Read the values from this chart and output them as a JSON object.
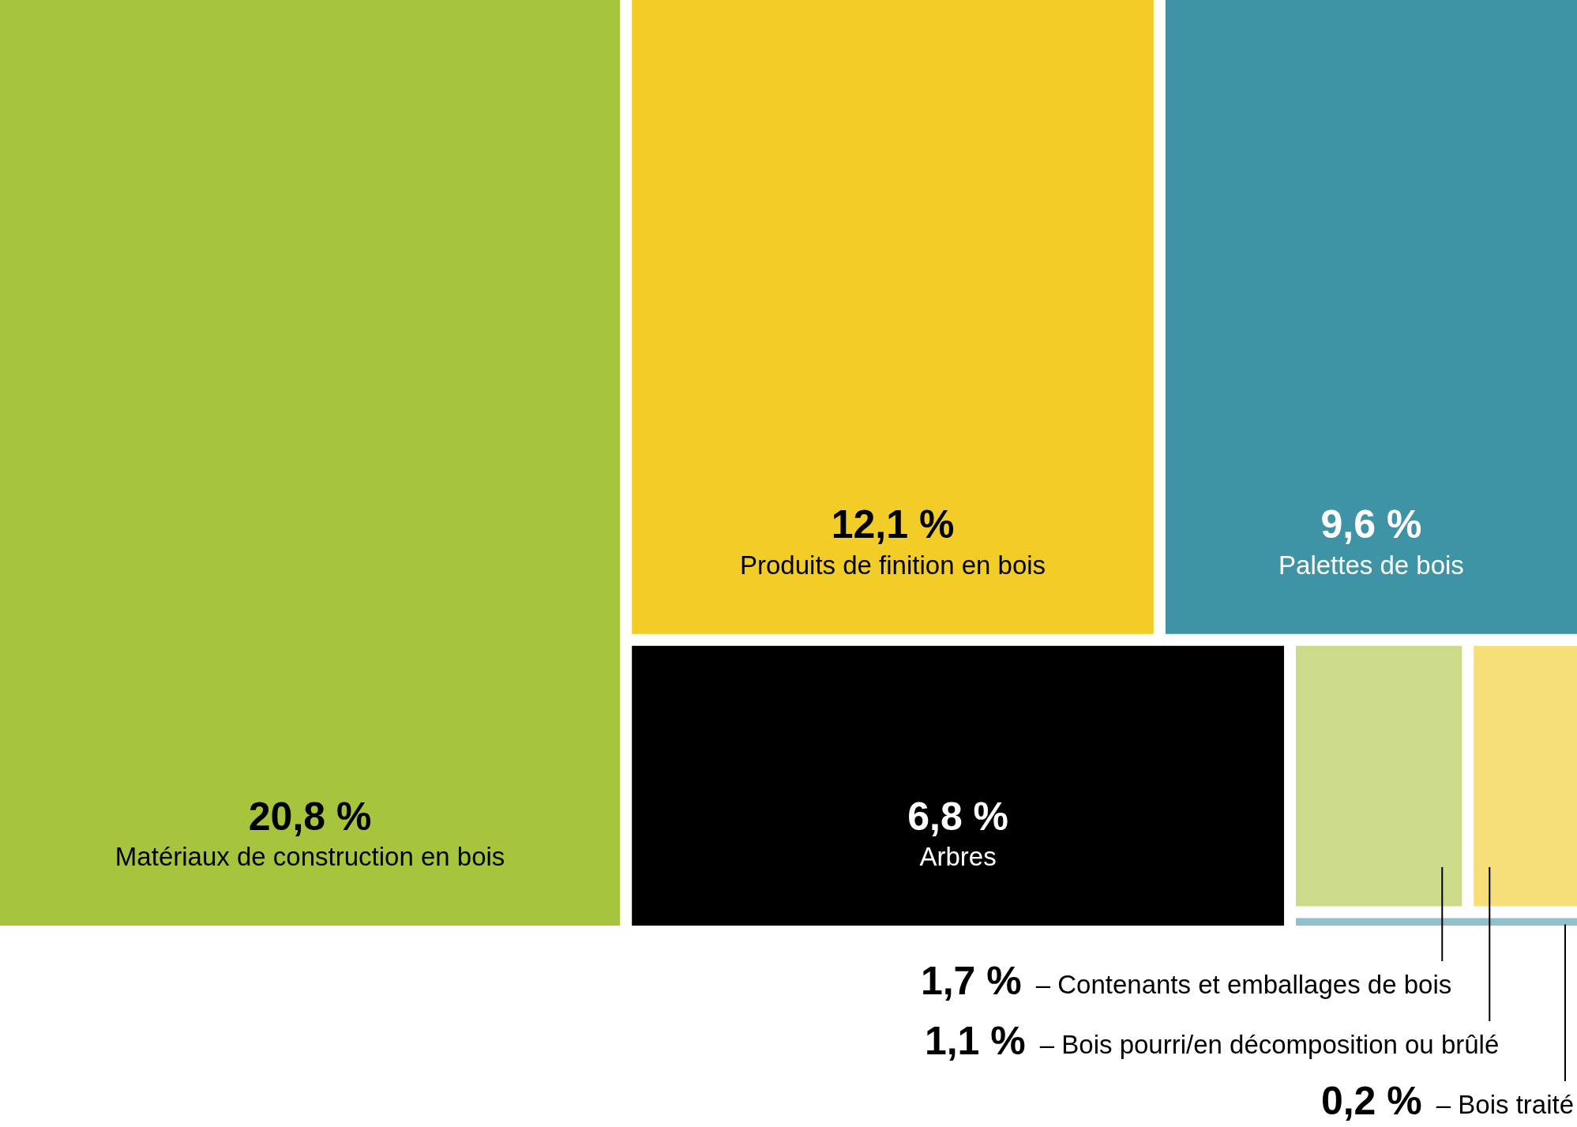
{
  "chart_data": {
    "type": "other",
    "categories": [
      "Matériaux de construction en bois",
      "Produits de finition en bois",
      "Palettes de bois",
      "Arbres",
      "– Contenants et emballages de bois",
      "– Bois pourri/en décomposition ou brûlé",
      "– Bois traité"
    ],
    "values": [
      20.8,
      12.1,
      9.6,
      6.8,
      1.7,
      1.1,
      0.2
    ],
    "value_labels": [
      "20,8 %",
      "12,1 %",
      "9,6 %",
      "6,8 %",
      "1,7 %",
      "1,1 %",
      "0,2 %"
    ],
    "colors": [
      "#a6c43c",
      "#f2cd27",
      "#3e93a4",
      "#000000",
      "#cbdb8a",
      "#f6de78",
      "#8fc0cb"
    ]
  }
}
